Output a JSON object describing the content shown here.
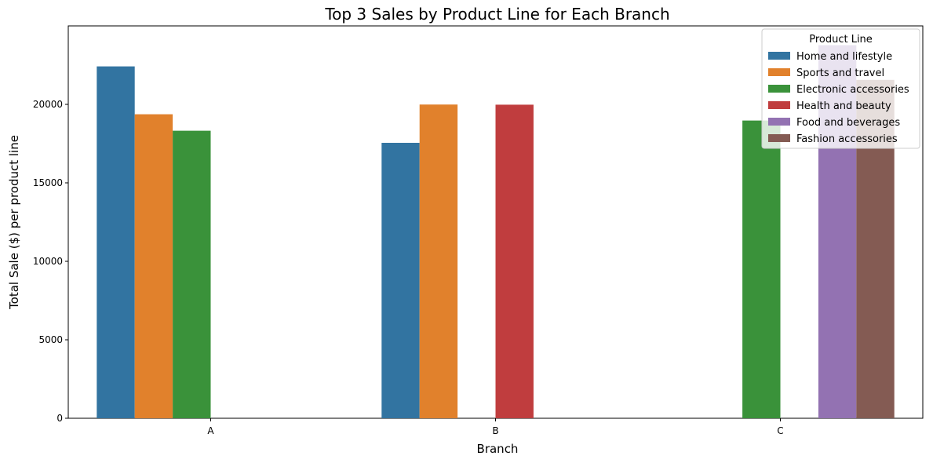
{
  "chart_data": {
    "type": "bar",
    "title": "Top 3 Sales by Product Line for Each Branch",
    "xlabel": "Branch",
    "ylabel": "Total Sale ($) per product line",
    "categories": [
      "A",
      "B",
      "C"
    ],
    "ylim": [
      0,
      25000
    ],
    "yticks": [
      0,
      5000,
      10000,
      15000,
      20000
    ],
    "legend": {
      "title": "Product Line",
      "placement": "top-right"
    },
    "grid": false,
    "series": [
      {
        "name": "Home and lifestyle",
        "color": "#3274a1",
        "values": [
          22420,
          17550,
          null
        ]
      },
      {
        "name": "Sports and travel",
        "color": "#e1812c",
        "values": [
          19370,
          19990,
          null
        ]
      },
      {
        "name": "Electronic accessories",
        "color": "#3a923a",
        "values": [
          18320,
          null,
          18970
        ]
      },
      {
        "name": "Health and beauty",
        "color": "#c03d3e",
        "values": [
          null,
          19980,
          null
        ]
      },
      {
        "name": "Food and beverages",
        "color": "#9372b2",
        "values": [
          null,
          null,
          23770
        ]
      },
      {
        "name": "Fashion accessories",
        "color": "#845b53",
        "values": [
          null,
          null,
          21560
        ]
      }
    ]
  }
}
